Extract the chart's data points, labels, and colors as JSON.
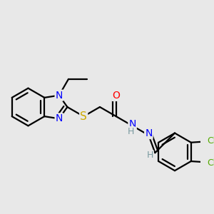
{
  "bg_color": "#e8e8e8",
  "atom_colors": {
    "N": "#0000ff",
    "S": "#ccaa00",
    "O": "#ff0000",
    "Cl": "#55aa00",
    "C": "#000000",
    "H": "#7a9aa0"
  },
  "bond_lw": 1.6,
  "font_size": 10,
  "fig_size": [
    3.0,
    3.0
  ],
  "dpi": 100
}
